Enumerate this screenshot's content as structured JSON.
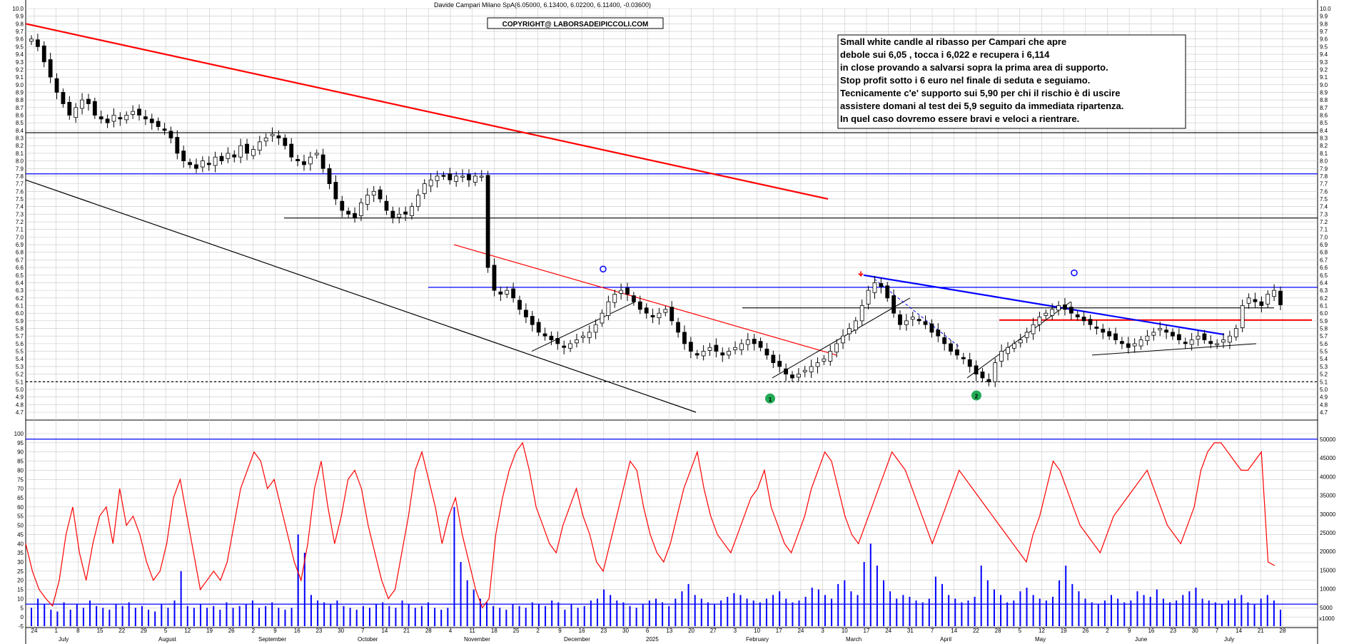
{
  "chart_data": [
    {
      "type": "candlestick",
      "title": "Davide Campari Milano SpA(6.05000, 6.13400, 6.02200, 6.11400, -0.03600)",
      "copyright": "COPYRIGHT@ LABORSADEIPICCOLI.COM",
      "ylim": [
        4.7,
        10.0
      ],
      "y_ticks": [
        "10.0",
        "9.9",
        "9.8",
        "9.7",
        "9.6",
        "9.5",
        "9.4",
        "9.3",
        "9.2",
        "9.1",
        "9.0",
        "8.9",
        "8.8",
        "8.7",
        "8.6",
        "8.5",
        "8.4",
        "8.3",
        "8.2",
        "8.1",
        "8.0",
        "7.9",
        "7.8",
        "7.7",
        "7.6",
        "7.5",
        "7.4",
        "7.3",
        "7.2",
        "7.1",
        "7.0",
        "6.9",
        "6.8",
        "6.7",
        "6.6",
        "6.5",
        "6.4",
        "6.3",
        "6.2",
        "6.1",
        "6.0",
        "5.9",
        "5.8",
        "5.7",
        "5.6",
        "5.5",
        "5.4",
        "5.3",
        "5.2",
        "5.1",
        "5.0",
        "4.9",
        "4.8",
        "4.7"
      ],
      "grid": true,
      "close": [
        9.6,
        9.5,
        9.3,
        9.1,
        8.9,
        8.75,
        8.6,
        8.7,
        8.8,
        8.75,
        8.6,
        8.55,
        8.5,
        8.6,
        8.55,
        8.6,
        8.65,
        8.6,
        8.55,
        8.5,
        8.45,
        8.4,
        8.3,
        8.1,
        8.0,
        7.95,
        7.9,
        8.0,
        7.95,
        8.05,
        8.0,
        8.1,
        8.05,
        8.2,
        8.1,
        8.15,
        8.25,
        8.3,
        8.35,
        8.3,
        8.2,
        8.05,
        8.0,
        7.95,
        8.05,
        8.1,
        7.9,
        7.7,
        7.5,
        7.35,
        7.3,
        7.25,
        7.45,
        7.55,
        7.6,
        7.5,
        7.35,
        7.25,
        7.3,
        7.3,
        7.4,
        7.55,
        7.7,
        7.75,
        7.8,
        7.8,
        7.75,
        7.8,
        7.8,
        7.75,
        7.8,
        7.8,
        6.6,
        6.3,
        6.25,
        6.3,
        6.2,
        6.05,
        5.95,
        5.85,
        5.75,
        5.7,
        5.65,
        5.6,
        5.55,
        5.6,
        5.65,
        5.7,
        5.75,
        5.85,
        6.0,
        6.15,
        6.25,
        6.3,
        6.25,
        6.15,
        6.05,
        6.0,
        5.95,
        6.0,
        6.05,
        5.9,
        5.75,
        5.6,
        5.5,
        5.45,
        5.5,
        5.55,
        5.5,
        5.45,
        5.5,
        5.55,
        5.6,
        5.65,
        5.6,
        5.55,
        5.45,
        5.35,
        5.3,
        5.2,
        5.15,
        5.2,
        5.25,
        5.3,
        5.35,
        5.4,
        5.5,
        5.6,
        5.7,
        5.8,
        5.9,
        6.1,
        6.3,
        6.4,
        6.35,
        6.2,
        6.0,
        5.85,
        5.9,
        5.95,
        5.9,
        5.85,
        5.75,
        5.7,
        5.6,
        5.5,
        5.45,
        5.4,
        5.3,
        5.2,
        5.15,
        5.1,
        5.35,
        5.5,
        5.55,
        5.6,
        5.65,
        5.75,
        5.85,
        5.95,
        6.0,
        6.05,
        6.1,
        6.05,
        6.0,
        5.95,
        5.9,
        5.85,
        5.8,
        5.75,
        5.7,
        5.65,
        5.6,
        5.55,
        5.6,
        5.65,
        5.7,
        5.75,
        5.8,
        5.75,
        5.7,
        5.65,
        5.6,
        5.65,
        5.7,
        5.65,
        5.6,
        5.6,
        5.65,
        5.7,
        5.8,
        6.1,
        6.2,
        6.15,
        6.1,
        6.25,
        6.3,
        6.11
      ],
      "x_labels": [
        "24",
        "1",
        "8",
        "15",
        "22",
        "29",
        "5",
        "12",
        "19",
        "26",
        "2",
        "9",
        "16",
        "23",
        "30",
        "7",
        "14",
        "21",
        "28",
        "4",
        "11",
        "18",
        "25",
        "2",
        "9",
        "16",
        "23",
        "30",
        "6",
        "13",
        "20",
        "27",
        "3",
        "10",
        "17",
        "24",
        "3",
        "10",
        "17",
        "24",
        "31",
        "7",
        "14",
        "22",
        "28",
        "5",
        "12",
        "19",
        "26",
        "2",
        "9",
        "16",
        "23",
        "30",
        "7",
        "14",
        "21",
        "28"
      ],
      "month_labels": [
        "July",
        "August",
        "September",
        "October",
        "November",
        "December",
        "2025",
        "February",
        "March",
        "April",
        "May",
        "June",
        "July"
      ],
      "trend_lines": [
        {
          "color": "#ff0000",
          "label": "long-term resistance"
        },
        {
          "color": "#000000",
          "label": "long-term support"
        },
        {
          "color": "#ff0000",
          "label": "medium-term resistance"
        },
        {
          "color": "#0000ff",
          "label": "short-term resistance"
        }
      ],
      "horizontal_levels": [
        {
          "value": 8.37,
          "color": "#000000"
        },
        {
          "value": 7.83,
          "color": "#0000ff"
        },
        {
          "value": 7.25,
          "color": "#000000"
        },
        {
          "value": 6.34,
          "color": "#0000ff"
        },
        {
          "value": 6.07,
          "color": "#000000"
        },
        {
          "value": 5.91,
          "color": "#ff0000"
        },
        {
          "value": 5.1,
          "color": "#000000",
          "dashed": true
        }
      ],
      "markers": [
        {
          "label": "1",
          "color": "#22aa55"
        },
        {
          "label": "2",
          "color": "#22aa55"
        },
        {
          "label": "0",
          "color": "#0000ff"
        },
        {
          "label": "0",
          "color": "#0000ff"
        }
      ],
      "annotation": [
        "Small white candle al ribasso per Campari che apre",
        "debole sui 6,05 , tocca i 6,022 e recupera i 6,114",
        "in close provando a salvarsi sopra la prima area di supporto.",
        "Stop profit sotto i 6 euro nel finale di seduta e seguiamo.",
        "Tecnicamente c'e' supporto sui 5,90 per chi il rischio è di uscire",
        "assistere domani al test dei 5,9 seguito da immediata ripartenza.",
        "In quel caso dovremo essere bravi e veloci a rientrare."
      ],
      "colors": {
        "up": "#ffffff",
        "down": "#000000",
        "grid": "#c8c8c8"
      }
    },
    {
      "type": "bar+line",
      "left_ticks": [
        "100",
        "95",
        "90",
        "85",
        "80",
        "75",
        "70",
        "65",
        "60",
        "55",
        "50",
        "45",
        "40",
        "35",
        "30",
        "25",
        "20",
        "15",
        "10",
        "5",
        "0",
        "-5"
      ],
      "right_ticks": [
        "50000",
        "45000",
        "40000",
        "35000",
        "30000",
        "25000",
        "20000",
        "15000",
        "10000",
        "5000"
      ],
      "right_unit": "x1000",
      "volume": [
        5,
        10,
        7,
        4,
        3,
        8,
        4,
        7,
        5,
        9,
        6,
        5,
        4,
        7,
        6,
        8,
        5,
        6,
        4,
        3,
        7,
        5,
        9,
        25,
        6,
        5,
        7,
        5,
        6,
        4,
        8,
        5,
        6,
        7,
        9,
        5,
        6,
        8,
        5,
        4,
        5,
        45,
        35,
        12,
        9,
        8,
        7,
        9,
        6,
        5,
        4,
        6,
        5,
        7,
        8,
        6,
        5,
        9,
        7,
        5,
        6,
        8,
        5,
        4,
        5,
        60,
        30,
        20,
        15,
        10,
        8,
        6,
        5,
        4,
        7,
        6,
        5,
        8,
        7,
        6,
        9,
        8,
        4,
        7,
        5,
        6,
        9,
        10,
        15,
        12,
        9,
        8,
        6,
        5,
        7,
        9,
        10,
        8,
        6,
        10,
        14,
        18,
        12,
        10,
        8,
        7,
        9,
        11,
        13,
        12,
        10,
        9,
        8,
        10,
        12,
        14,
        10,
        8,
        9,
        11,
        16,
        15,
        12,
        10,
        18,
        20,
        14,
        12,
        30,
        40,
        28,
        20,
        14,
        10,
        12,
        11,
        9,
        8,
        10,
        22,
        18,
        12,
        10,
        8,
        9,
        11,
        28,
        20,
        15,
        12,
        8,
        9,
        14,
        16,
        12,
        10,
        9,
        11,
        20,
        28,
        18,
        14,
        10,
        8,
        7,
        9,
        12,
        10,
        8,
        9,
        14,
        12,
        11,
        15,
        10,
        8,
        9,
        12,
        14,
        16,
        10,
        9,
        8,
        7,
        9,
        10,
        12,
        8,
        7,
        10,
        12,
        9,
        4
      ],
      "oscillator": [
        40,
        25,
        15,
        10,
        6,
        20,
        45,
        60,
        35,
        20,
        40,
        55,
        60,
        40,
        70,
        50,
        55,
        45,
        30,
        20,
        25,
        40,
        65,
        75,
        55,
        35,
        15,
        20,
        25,
        20,
        30,
        50,
        70,
        80,
        90,
        85,
        70,
        75,
        60,
        45,
        30,
        20,
        40,
        70,
        85,
        60,
        40,
        55,
        75,
        80,
        70,
        50,
        35,
        20,
        10,
        15,
        35,
        55,
        80,
        90,
        75,
        60,
        40,
        55,
        65,
        45,
        30,
        15,
        5,
        10,
        45,
        65,
        80,
        90,
        95,
        80,
        60,
        50,
        40,
        35,
        50,
        60,
        70,
        55,
        45,
        30,
        25,
        40,
        55,
        70,
        85,
        80,
        60,
        45,
        35,
        30,
        40,
        55,
        70,
        80,
        90,
        70,
        55,
        45,
        40,
        35,
        45,
        55,
        65,
        70,
        80,
        60,
        50,
        40,
        35,
        45,
        55,
        70,
        80,
        90,
        85,
        70,
        55,
        45,
        40,
        50,
        60,
        70,
        80,
        90,
        85,
        80,
        70,
        60,
        50,
        40,
        50,
        60,
        70,
        80,
        75,
        70,
        65,
        60,
        55,
        50,
        45,
        40,
        35,
        30,
        45,
        55,
        70,
        85,
        80,
        70,
        60,
        50,
        45,
        40,
        35,
        45,
        55,
        60,
        65,
        70,
        75,
        80,
        70,
        60,
        50,
        45,
        40,
        50,
        60,
        80,
        90,
        95,
        95,
        90,
        85,
        80,
        80,
        85,
        90,
        30,
        28
      ]
    }
  ]
}
